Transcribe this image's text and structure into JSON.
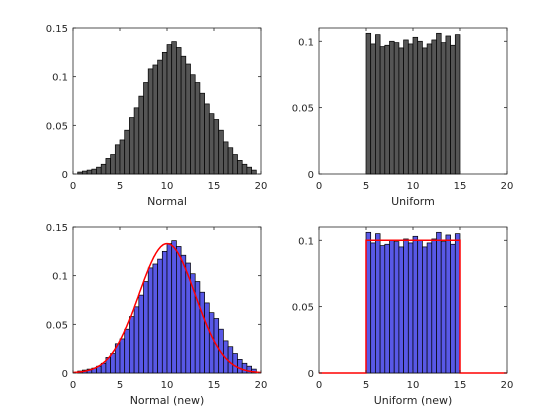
{
  "chart_data": [
    {
      "type": "bar",
      "panel": "top-left",
      "xlabel": "Normal",
      "xlim": [
        0,
        20
      ],
      "ylim": [
        0,
        0.15
      ],
      "xticks": [
        0,
        5,
        10,
        15,
        20
      ],
      "yticks": [
        0,
        0.05,
        0.1,
        0.15
      ],
      "xtick_labels": [
        "0",
        "5",
        "10",
        "15",
        "20"
      ],
      "ytick_labels": [
        "0",
        "0.05",
        "0.1",
        "0.15"
      ],
      "bar_color": "#555555",
      "bin_width": 0.5,
      "bin_edges": [
        0.5,
        19.5
      ],
      "values": [
        0.002,
        0.003,
        0.004,
        0.005,
        0.007,
        0.01,
        0.016,
        0.02,
        0.03,
        0.035,
        0.045,
        0.058,
        0.068,
        0.08,
        0.094,
        0.108,
        0.112,
        0.117,
        0.125,
        0.133,
        0.136,
        0.13,
        0.121,
        0.113,
        0.102,
        0.094,
        0.083,
        0.072,
        0.062,
        0.056,
        0.045,
        0.033,
        0.027,
        0.02,
        0.014,
        0.01,
        0.007,
        0.004
      ]
    },
    {
      "type": "bar",
      "panel": "top-right",
      "xlabel": "Uniform",
      "xlim": [
        0,
        20
      ],
      "ylim": [
        0,
        0.11
      ],
      "xticks": [
        0,
        5,
        10,
        15,
        20
      ],
      "yticks": [
        0,
        0.05,
        0.1
      ],
      "xtick_labels": [
        "0",
        "5",
        "10",
        "15",
        "20"
      ],
      "ytick_labels": [
        "0",
        "0.05",
        "0.1"
      ],
      "bar_color": "#555555",
      "bin_width": 0.5,
      "bin_edges": [
        5,
        15
      ],
      "values": [
        0.106,
        0.098,
        0.105,
        0.096,
        0.097,
        0.1,
        0.099,
        0.095,
        0.101,
        0.098,
        0.103,
        0.1,
        0.095,
        0.098,
        0.101,
        0.106,
        0.099,
        0.104,
        0.097,
        0.105
      ]
    },
    {
      "type": "bar",
      "panel": "bottom-left",
      "xlabel": "Normal (new)",
      "xlim": [
        0,
        20
      ],
      "ylim": [
        0,
        0.15
      ],
      "xticks": [
        0,
        5,
        10,
        15,
        20
      ],
      "yticks": [
        0,
        0.05,
        0.1,
        0.15
      ],
      "xtick_labels": [
        "0",
        "5",
        "10",
        "15",
        "20"
      ],
      "ytick_labels": [
        "0",
        "0.05",
        "0.1",
        "0.15"
      ],
      "bar_color": "#5858e6",
      "bin_width": 0.5,
      "bin_edges": [
        0.5,
        19.5
      ],
      "values": [
        0.002,
        0.003,
        0.004,
        0.005,
        0.007,
        0.01,
        0.016,
        0.02,
        0.03,
        0.035,
        0.045,
        0.058,
        0.068,
        0.08,
        0.094,
        0.108,
        0.112,
        0.117,
        0.125,
        0.133,
        0.136,
        0.13,
        0.121,
        0.113,
        0.102,
        0.094,
        0.083,
        0.072,
        0.062,
        0.056,
        0.045,
        0.033,
        0.027,
        0.02,
        0.014,
        0.01,
        0.007,
        0.004
      ],
      "curve_color": "#ff0000",
      "curve": {
        "kind": "normal_pdf",
        "mean": 10,
        "std": 3
      }
    },
    {
      "type": "bar",
      "panel": "bottom-right",
      "xlabel": "Uniform (new)",
      "xlim": [
        0,
        20
      ],
      "ylim": [
        0,
        0.11
      ],
      "xticks": [
        0,
        5,
        10,
        15,
        20
      ],
      "yticks": [
        0,
        0.05,
        0.1
      ],
      "xtick_labels": [
        "0",
        "5",
        "10",
        "15",
        "20"
      ],
      "ytick_labels": [
        "0",
        "0.05",
        "0.1"
      ],
      "bar_color": "#5858e6",
      "bin_width": 0.5,
      "bin_edges": [
        5,
        15
      ],
      "values": [
        0.106,
        0.098,
        0.105,
        0.096,
        0.097,
        0.1,
        0.099,
        0.095,
        0.101,
        0.098,
        0.103,
        0.1,
        0.095,
        0.098,
        0.101,
        0.106,
        0.099,
        0.104,
        0.097,
        0.105
      ],
      "curve_color": "#ff0000",
      "curve": {
        "kind": "uniform_pdf",
        "a": 5,
        "b": 15,
        "height": 0.1
      }
    }
  ]
}
